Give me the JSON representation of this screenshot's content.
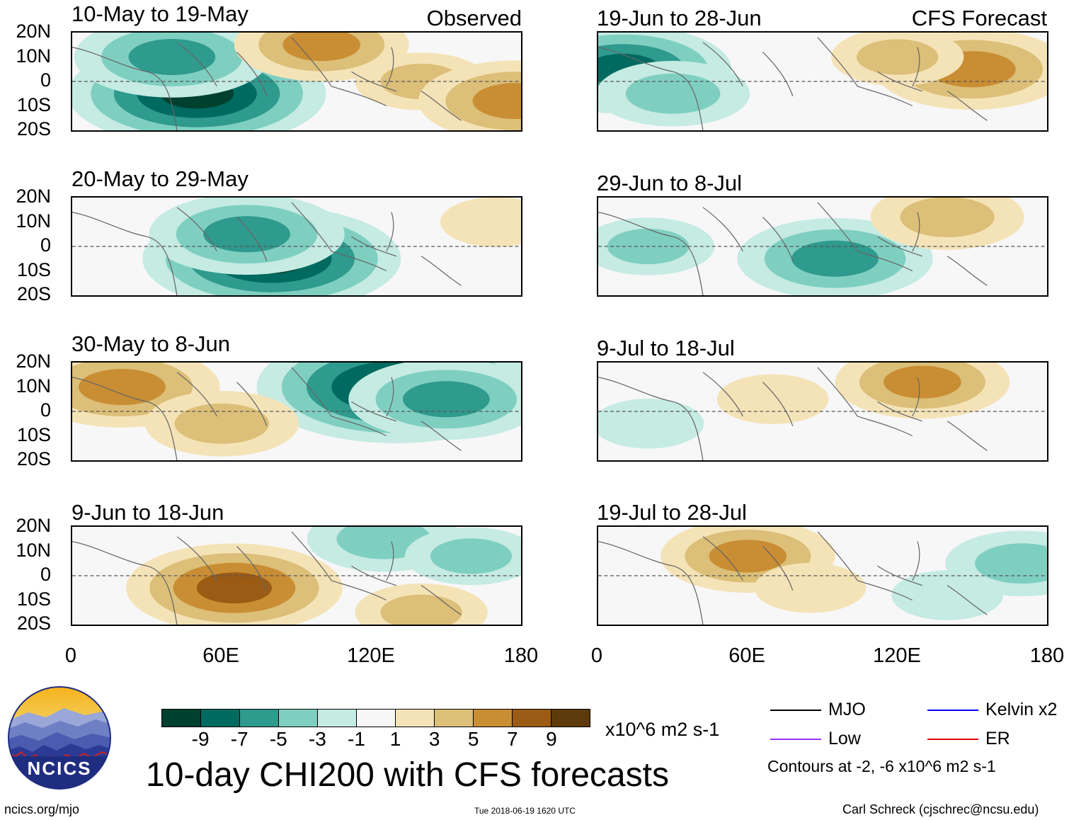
{
  "chart_data": {
    "type": "heatmap",
    "title": "10-day CHI200 with CFS forecasts",
    "units": "x10^6 m2 s-1",
    "x_ticks": [
      "0",
      "60E",
      "120E",
      "180"
    ],
    "y_ticks": [
      "20N",
      "10N",
      "0",
      "10S",
      "20S"
    ],
    "xlim": [
      0,
      180
    ],
    "ylim": [
      -20,
      20
    ],
    "colorbar": {
      "labels": [
        "-9",
        "-7",
        "-5",
        "-3",
        "-1",
        "1",
        "3",
        "5",
        "7",
        "9"
      ],
      "colors": [
        "#00402f",
        "#006a60",
        "#2f9a8e",
        "#7fcfc1",
        "#c5ebe3",
        "#f7f7f7",
        "#f5e3b8",
        "#dcbf78",
        "#c98d33",
        "#9b5b14",
        "#5d3a0a"
      ]
    },
    "panels": [
      {
        "column": "Observed",
        "period": "10-May to 19-May",
        "tag": "Observed",
        "anomaly_centers": [
          {
            "lon": 50,
            "lat": -5,
            "value": -9
          },
          {
            "lon": 40,
            "lat": 10,
            "value": -6
          },
          {
            "lon": 100,
            "lat": 15,
            "value": 5
          },
          {
            "lon": 140,
            "lat": 0,
            "value": 3
          },
          {
            "lon": 178,
            "lat": -8,
            "value": 6
          }
        ]
      },
      {
        "column": "Observed",
        "period": "20-May to 29-May",
        "tag": "",
        "anomaly_centers": [
          {
            "lon": 80,
            "lat": -5,
            "value": -9
          },
          {
            "lon": 70,
            "lat": 5,
            "value": -6
          },
          {
            "lon": 170,
            "lat": 10,
            "value": 2
          }
        ]
      },
      {
        "column": "Observed",
        "period": "30-May to 8-Jun",
        "tag": "",
        "anomaly_centers": [
          {
            "lon": 130,
            "lat": 10,
            "value": -10
          },
          {
            "lon": 150,
            "lat": 5,
            "value": -6
          },
          {
            "lon": 20,
            "lat": 10,
            "value": 6
          },
          {
            "lon": 60,
            "lat": -5,
            "value": 4
          }
        ]
      },
      {
        "column": "Observed",
        "period": "9-Jun to 18-Jun",
        "tag": "",
        "anomaly_centers": [
          {
            "lon": 65,
            "lat": -5,
            "value": 7
          },
          {
            "lon": 125,
            "lat": 15,
            "value": -4
          },
          {
            "lon": 160,
            "lat": 8,
            "value": -3
          },
          {
            "lon": 140,
            "lat": -15,
            "value": 3
          }
        ]
      },
      {
        "column": "CFS Forecast",
        "period": "19-Jun to 28-Jun",
        "tag": "CFS Forecast",
        "anomaly_centers": [
          {
            "lon": 10,
            "lat": 5,
            "value": -7
          },
          {
            "lon": 30,
            "lat": -5,
            "value": -4
          },
          {
            "lon": 150,
            "lat": 5,
            "value": 6
          },
          {
            "lon": 120,
            "lat": 10,
            "value": 3
          }
        ]
      },
      {
        "column": "CFS Forecast",
        "period": "29-Jun to 8-Jul",
        "tag": "",
        "anomaly_centers": [
          {
            "lon": 95,
            "lat": -5,
            "value": -6
          },
          {
            "lon": 20,
            "lat": 0,
            "value": -3
          },
          {
            "lon": 140,
            "lat": 12,
            "value": 4
          }
        ]
      },
      {
        "column": "CFS Forecast",
        "period": "9-Jul to 18-Jul",
        "tag": "",
        "anomaly_centers": [
          {
            "lon": 130,
            "lat": 12,
            "value": 5
          },
          {
            "lon": 70,
            "lat": 5,
            "value": 2
          },
          {
            "lon": 20,
            "lat": -5,
            "value": -2
          }
        ]
      },
      {
        "column": "CFS Forecast",
        "period": "19-Jul to 28-Jul",
        "tag": "",
        "anomaly_centers": [
          {
            "lon": 60,
            "lat": 8,
            "value": 5
          },
          {
            "lon": 85,
            "lat": -5,
            "value": 2
          },
          {
            "lon": 170,
            "lat": 5,
            "value": -4
          },
          {
            "lon": 140,
            "lat": -8,
            "value": -2
          }
        ]
      }
    ],
    "legend": {
      "items": [
        {
          "label": "MJO",
          "color": "#000000"
        },
        {
          "label": "Kelvin x2",
          "color": "#0000ff"
        },
        {
          "label": "Low",
          "color": "#9933ff"
        },
        {
          "label": "ER",
          "color": "#e00000"
        }
      ],
      "note": "Contours at -2, -6 x10^6 m2 s-1"
    }
  },
  "logo": {
    "text": "NCICS"
  },
  "footer": {
    "url": "ncics.org/mjo",
    "timestamp": "Tue 2018-06-19 1620 UTC",
    "credit": "Carl Schreck (cjschrec@ncsu.edu)"
  }
}
